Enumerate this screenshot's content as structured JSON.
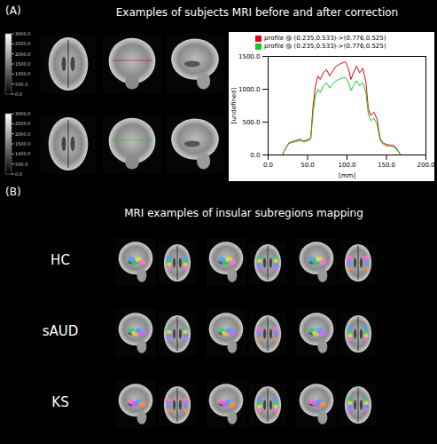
{
  "figure": {
    "panels": [
      {
        "label": "(A)",
        "title": "Examples of subjects MRI before and after correction",
        "colorbars": [
          {
            "range": [
              0,
              3000
            ],
            "ticks": [
              {
                "value": 0,
                "label": "0.0"
              },
              {
                "value": 500,
                "label": "500.0"
              },
              {
                "value": 1000,
                "label": "1000.0"
              },
              {
                "value": 1500,
                "label": "1500.0"
              },
              {
                "value": 2000,
                "label": "2000.0"
              },
              {
                "value": 2500,
                "label": "2500.0"
              },
              {
                "value": 3000,
                "label": "3000.0"
              }
            ]
          },
          {
            "range": [
              0,
              3000
            ],
            "ticks": [
              {
                "value": 0,
                "label": "0.0"
              },
              {
                "value": 500,
                "label": "500.0"
              },
              {
                "value": 1000,
                "label": "1000.0"
              },
              {
                "value": 1500,
                "label": "1500.0"
              },
              {
                "value": 2000,
                "label": "2000.0"
              },
              {
                "value": 2500,
                "label": "2500.0"
              },
              {
                "value": 3000,
                "label": "3000.0"
              }
            ]
          }
        ]
      },
      {
        "label": "(B)",
        "title": "MRI examples of insular subregions mapping",
        "rows": [
          "HC",
          "sAUD",
          "KS"
        ]
      }
    ]
  },
  "chart_data": {
    "type": "line",
    "x_label": "[mm]",
    "y_label": "[undefined]",
    "x": [
      18,
      22,
      26,
      30,
      35,
      40,
      45,
      50,
      54,
      57,
      60,
      63,
      66,
      70,
      74,
      78,
      82,
      86,
      90,
      94,
      98,
      102,
      105,
      108,
      112,
      116,
      120,
      124,
      127,
      130,
      134,
      138,
      142,
      146,
      150,
      155,
      160,
      165,
      168
    ],
    "series": [
      {
        "name": "profile @ (0.235,0.533)->(0.776,0.525)",
        "color": "#e8000b",
        "values": [
          0,
          100,
          180,
          200,
          220,
          240,
          210,
          230,
          260,
          750,
          1050,
          1200,
          1150,
          1250,
          1300,
          1200,
          1280,
          1350,
          1380,
          1400,
          1420,
          1300,
          1150,
          1250,
          1350,
          1250,
          1320,
          1100,
          700,
          600,
          650,
          550,
          250,
          180,
          160,
          150,
          140,
          60,
          0
        ]
      },
      {
        "name": "profile @ (0.235,0.533)->(0.776,0.525)",
        "color": "#22c322",
        "values": [
          0,
          90,
          170,
          190,
          200,
          220,
          200,
          215,
          240,
          650,
          900,
          1000,
          950,
          1050,
          1100,
          1020,
          1080,
          1130,
          1150,
          1170,
          1180,
          1100,
          980,
          1050,
          1130,
          1050,
          1100,
          950,
          620,
          520,
          560,
          470,
          220,
          160,
          140,
          130,
          120,
          50,
          0
        ]
      }
    ],
    "xlim": [
      0,
      200
    ],
    "xticks": [
      {
        "value": 0,
        "label": "0.0"
      },
      {
        "value": 50,
        "label": "50.0"
      },
      {
        "value": 100,
        "label": "100.0"
      },
      {
        "value": 150,
        "label": "150.0"
      },
      {
        "value": 200,
        "label": "200.0"
      }
    ],
    "ylim": [
      0,
      1500
    ],
    "yticks": [
      {
        "value": 0,
        "label": "0.0"
      },
      {
        "value": 500,
        "label": "500.0"
      },
      {
        "value": 1000,
        "label": "1000.0"
      },
      {
        "value": 1500,
        "label": "1500.0"
      }
    ],
    "legend": "top-left"
  }
}
